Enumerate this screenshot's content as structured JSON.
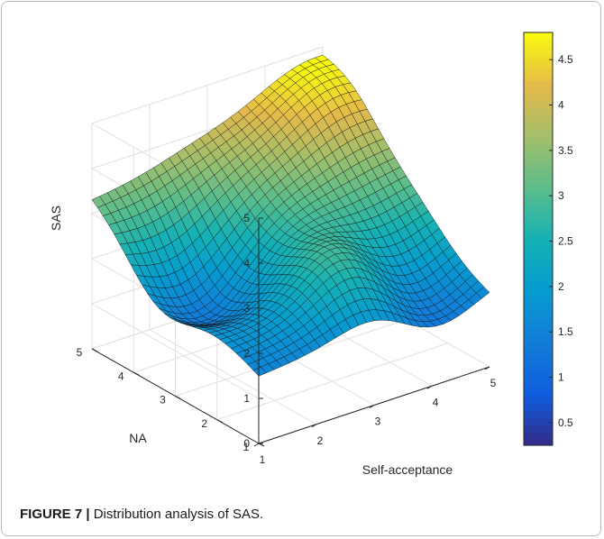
{
  "caption": {
    "label": "FIGURE 7 |",
    "text": " Distribution analysis of SAS."
  },
  "chart_data": {
    "type": "surface",
    "xlabel": "Self-acceptance",
    "ylabel": "NA",
    "zlabel": "SAS",
    "xlim": [
      1,
      5
    ],
    "ylim": [
      1,
      5
    ],
    "zlim": [
      0,
      5
    ],
    "x_ticks": [
      "1",
      "2",
      "3",
      "4",
      "5"
    ],
    "y_ticks": [
      "1",
      "2",
      "3",
      "4",
      "5"
    ],
    "z_ticks": [
      "0",
      "1",
      "2",
      "3",
      "4",
      "5"
    ],
    "grid": true,
    "colormap": "parula",
    "colorbar": {
      "range": [
        0.25,
        4.8
      ],
      "ticks": [
        "0.5",
        "1",
        "1.5",
        "2",
        "2.5",
        "3",
        "3.5",
        "4",
        "4.5"
      ],
      "placement": "right"
    },
    "surface_corners": [
      {
        "x": 1,
        "y": 5,
        "z": 3.4
      },
      {
        "x": 5,
        "y": 5,
        "z": 4.5
      },
      {
        "x": 5,
        "y": 1,
        "z": 1.9
      },
      {
        "x": 1,
        "y": 1,
        "z": 1.5
      }
    ],
    "surface_peaks": [
      {
        "x": 3.2,
        "y": 1.8,
        "z": 3.4
      },
      {
        "x": 4.6,
        "y": 4.4,
        "z": 4.6
      }
    ],
    "surface_valleys": [
      {
        "x": 1.7,
        "y": 3.4,
        "z": 1.4
      },
      {
        "x": 3.9,
        "y": 1.6,
        "z": 1.1
      }
    ]
  }
}
